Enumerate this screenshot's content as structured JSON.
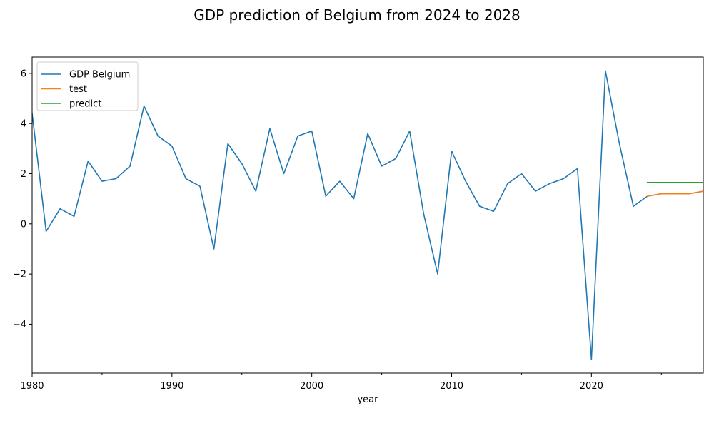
{
  "chart_data": {
    "type": "line",
    "title": "GDP prediction of Belgium from 2024 to 2028",
    "xlabel": "year",
    "ylabel": "",
    "xlim": [
      1980,
      2028
    ],
    "ylim": [
      -5.95,
      6.65
    ],
    "x_ticks": [
      1980,
      1990,
      2000,
      2010,
      2020
    ],
    "x_minor_ticks": [
      1985,
      1995,
      2005,
      2015,
      2025
    ],
    "y_ticks": [
      -4,
      -2,
      0,
      2,
      4,
      6
    ],
    "y_tick_labels": [
      "−4",
      "−2",
      "0",
      "2",
      "4",
      "6"
    ],
    "grid": false,
    "legend_position": "top-left",
    "series": [
      {
        "name": "GDP Belgium",
        "color": "#1f77b4",
        "x": [
          1980,
          1981,
          1982,
          1983,
          1984,
          1985,
          1986,
          1987,
          1988,
          1989,
          1990,
          1991,
          1992,
          1993,
          1994,
          1995,
          1996,
          1997,
          1998,
          1999,
          2000,
          2001,
          2002,
          2003,
          2004,
          2005,
          2006,
          2007,
          2008,
          2009,
          2010,
          2011,
          2012,
          2013,
          2014,
          2015,
          2016,
          2017,
          2018,
          2019,
          2020,
          2021,
          2022,
          2023,
          2024,
          2025,
          2026,
          2027,
          2028
        ],
        "values": [
          4.4,
          -0.3,
          0.6,
          0.3,
          2.5,
          1.7,
          1.8,
          2.3,
          4.7,
          3.5,
          3.1,
          1.8,
          1.5,
          -1.0,
          3.2,
          2.4,
          1.3,
          3.8,
          2.0,
          3.5,
          3.7,
          1.1,
          1.7,
          1.0,
          3.6,
          2.3,
          2.6,
          3.7,
          0.4,
          -2.0,
          2.9,
          1.7,
          0.7,
          0.5,
          1.6,
          2.0,
          1.3,
          1.6,
          1.8,
          2.2,
          -5.4,
          6.1,
          3.2,
          0.7,
          1.1,
          1.2,
          1.2,
          1.2,
          1.3
        ]
      },
      {
        "name": "test",
        "color": "#ff7f0e",
        "x": [
          2024,
          2025,
          2026,
          2027,
          2028
        ],
        "values": [
          1.1,
          1.2,
          1.2,
          1.2,
          1.3
        ]
      },
      {
        "name": "predict",
        "color": "#2ca02c",
        "x": [
          2024,
          2025,
          2026,
          2027,
          2028
        ],
        "values": [
          1.65,
          1.65,
          1.65,
          1.65,
          1.65
        ]
      }
    ]
  }
}
